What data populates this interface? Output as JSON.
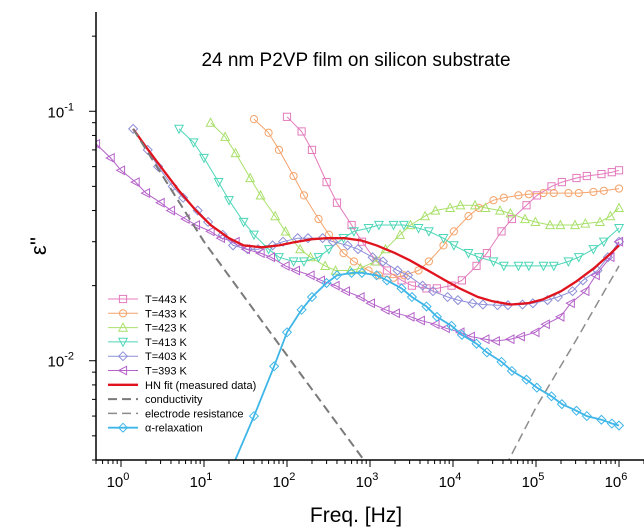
{
  "chart_data": {
    "type": "line",
    "title": "24 nm P2VP film on silicon substrate",
    "xlabel": "Freq. [Hz]",
    "ylabel": "ε''",
    "xscale": "log",
    "yscale": "log",
    "xlim": [
      0.5,
      2000000
    ],
    "ylim": [
      0.004,
      0.25
    ],
    "x_ticks": [
      {
        "value": 1,
        "label": "10^0"
      },
      {
        "value": 10,
        "label": "10^1"
      },
      {
        "value": 100,
        "label": "10^2"
      },
      {
        "value": 1000,
        "label": "10^3"
      },
      {
        "value": 10000,
        "label": "10^4"
      },
      {
        "value": 100000,
        "label": "10^5"
      },
      {
        "value": 1000000,
        "label": "10^6"
      }
    ],
    "y_ticks": [
      {
        "value": 0.01,
        "label": "10^-2"
      },
      {
        "value": 0.1,
        "label": "10^-1"
      }
    ],
    "legend_position": "bottom-left",
    "series": [
      {
        "name": "T=443 K",
        "color": "#e47bbd",
        "marker": "square",
        "dash": "solid",
        "x": [
          100,
          150,
          200,
          300,
          400,
          600,
          800,
          1200,
          1600,
          2400,
          3200,
          4800,
          6400,
          9600,
          12800,
          19200,
          25600,
          38400,
          51200,
          76800,
          102400,
          153600,
          204800,
          307200,
          409600,
          614400,
          819200,
          1000000
        ],
        "y": [
          0.095,
          0.083,
          0.07,
          0.052,
          0.043,
          0.035,
          0.03,
          0.025,
          0.023,
          0.021,
          0.02,
          0.0195,
          0.0195,
          0.02,
          0.021,
          0.024,
          0.027,
          0.033,
          0.037,
          0.042,
          0.046,
          0.05,
          0.052,
          0.054,
          0.055,
          0.056,
          0.057,
          0.058
        ]
      },
      {
        "name": "T=433 K",
        "color": "#f5a36b",
        "marker": "circle",
        "dash": "solid",
        "x": [
          40,
          60,
          80,
          120,
          160,
          240,
          320,
          480,
          640,
          960,
          1280,
          1920,
          2560,
          3840,
          5120,
          7680,
          10240,
          15360,
          20480,
          30720,
          40960,
          61440,
          81920,
          122880,
          163840,
          245760,
          327680,
          491520,
          655360,
          1000000
        ],
        "y": [
          0.093,
          0.082,
          0.07,
          0.055,
          0.046,
          0.037,
          0.032,
          0.027,
          0.025,
          0.023,
          0.022,
          0.0215,
          0.022,
          0.023,
          0.025,
          0.029,
          0.033,
          0.038,
          0.041,
          0.044,
          0.045,
          0.046,
          0.0465,
          0.047,
          0.047,
          0.047,
          0.047,
          0.0475,
          0.048,
          0.049
        ]
      },
      {
        "name": "T=423 K",
        "color": "#a9e06a",
        "marker": "triangle-up",
        "dash": "solid",
        "x": [
          12,
          18,
          24,
          36,
          48,
          72,
          96,
          144,
          192,
          288,
          384,
          576,
          768,
          1152,
          1536,
          2304,
          3072,
          4608,
          6144,
          9216,
          12288,
          18432,
          24576,
          36864,
          49152,
          73728,
          98304,
          147456,
          196608,
          294912,
          393216,
          589824,
          786432,
          1000000
        ],
        "y": [
          0.09,
          0.079,
          0.068,
          0.054,
          0.046,
          0.038,
          0.033,
          0.028,
          0.026,
          0.024,
          0.023,
          0.023,
          0.0235,
          0.025,
          0.028,
          0.032,
          0.035,
          0.038,
          0.04,
          0.041,
          0.042,
          0.042,
          0.041,
          0.04,
          0.039,
          0.037,
          0.036,
          0.035,
          0.035,
          0.035,
          0.0355,
          0.036,
          0.038,
          0.041
        ]
      },
      {
        "name": "T=413 K",
        "color": "#4dd6b8",
        "marker": "triangle-down",
        "dash": "solid",
        "x": [
          5,
          7.5,
          10,
          15,
          20,
          30,
          40,
          60,
          80,
          120,
          160,
          240,
          320,
          480,
          640,
          960,
          1280,
          1920,
          2560,
          3840,
          5120,
          7680,
          10240,
          15360,
          20480,
          30720,
          40960,
          61440,
          81920,
          122880,
          163840,
          245760,
          327680,
          491520,
          655360,
          1000000
        ],
        "y": [
          0.085,
          0.075,
          0.065,
          0.052,
          0.044,
          0.036,
          0.032,
          0.028,
          0.026,
          0.025,
          0.025,
          0.026,
          0.028,
          0.031,
          0.033,
          0.034,
          0.035,
          0.035,
          0.035,
          0.034,
          0.033,
          0.031,
          0.029,
          0.027,
          0.026,
          0.025,
          0.024,
          0.024,
          0.024,
          0.024,
          0.024,
          0.025,
          0.026,
          0.028,
          0.03,
          0.034
        ]
      },
      {
        "name": "T=403 K",
        "color": "#8e8fd8",
        "marker": "diamond",
        "dash": "solid",
        "x": [
          1.4,
          2.1,
          2.8,
          4.2,
          5.6,
          8.4,
          11.2,
          16.8,
          22.4,
          33.6,
          44.8,
          67.2,
          89.6,
          134.4,
          179.2,
          268.8,
          358.4,
          537.6,
          716.8,
          1075.2,
          1433.6,
          2150.4,
          2867.2,
          4300.8,
          5734.4,
          8601.6,
          11468.8,
          17203.2,
          22937.6,
          34406.4,
          45875.2,
          68812.8,
          91750.4,
          137625.6,
          183500.8,
          275251.2,
          367001.6,
          550502.4,
          734003.2,
          1000000
        ],
        "y": [
          0.085,
          0.07,
          0.06,
          0.05,
          0.045,
          0.04,
          0.036,
          0.032,
          0.029,
          0.028,
          0.028,
          0.029,
          0.03,
          0.031,
          0.031,
          0.031,
          0.03,
          0.029,
          0.028,
          0.026,
          0.025,
          0.023,
          0.022,
          0.02,
          0.019,
          0.018,
          0.0175,
          0.017,
          0.0168,
          0.0167,
          0.0167,
          0.0168,
          0.017,
          0.0175,
          0.018,
          0.019,
          0.021,
          0.023,
          0.026,
          0.03
        ]
      },
      {
        "name": "T=393 K",
        "color": "#b462c9",
        "marker": "triangle-left",
        "dash": "solid",
        "x": [
          0.5,
          0.75,
          1,
          1.5,
          2,
          3,
          4,
          6,
          8,
          12,
          16,
          24,
          32,
          48,
          64,
          96,
          128,
          192,
          256,
          384,
          512,
          768,
          1024,
          1536,
          2048,
          3072,
          4096,
          6144,
          8192,
          12288,
          16384,
          24576,
          32768,
          49152,
          65536,
          98304,
          131072,
          196608,
          262144,
          393216,
          524288,
          786432,
          1000000
        ],
        "y": [
          0.074,
          0.065,
          0.058,
          0.052,
          0.047,
          0.043,
          0.04,
          0.037,
          0.035,
          0.033,
          0.031,
          0.03,
          0.028,
          0.027,
          0.026,
          0.024,
          0.023,
          0.022,
          0.021,
          0.02,
          0.019,
          0.018,
          0.017,
          0.016,
          0.0155,
          0.015,
          0.0145,
          0.014,
          0.0135,
          0.013,
          0.0125,
          0.0122,
          0.012,
          0.0122,
          0.0125,
          0.013,
          0.014,
          0.015,
          0.017,
          0.019,
          0.022,
          0.026,
          0.03
        ]
      },
      {
        "name": "HN fit (measured data)",
        "color": "#e0141e",
        "marker": "none",
        "dash": "solid",
        "width": 2.3,
        "x": [
          1.4,
          2,
          3,
          5,
          8,
          12,
          20,
          30,
          50,
          80,
          120,
          200,
          300,
          500,
          800,
          1200,
          2000,
          3000,
          5000,
          8000,
          12000,
          20000,
          30000,
          50000,
          80000,
          120000,
          200000,
          300000,
          500000,
          800000,
          1000000
        ],
        "y": [
          0.085,
          0.072,
          0.06,
          0.048,
          0.04,
          0.035,
          0.031,
          0.029,
          0.0285,
          0.029,
          0.0298,
          0.0307,
          0.031,
          0.031,
          0.0303,
          0.029,
          0.027,
          0.0253,
          0.023,
          0.021,
          0.0195,
          0.018,
          0.0173,
          0.0168,
          0.017,
          0.0176,
          0.019,
          0.0207,
          0.0235,
          0.027,
          0.029
        ]
      },
      {
        "name": "conductivity",
        "color": "#7a7a7a",
        "marker": "none",
        "dash": "dash",
        "width": 2,
        "x": [
          1.4,
          10,
          100,
          1000,
          3000
        ],
        "y": [
          0.085,
          0.03,
          0.0105,
          0.0037,
          0.0021
        ]
      },
      {
        "name": "electrode resistance",
        "color": "#8c8c8c",
        "marker": "none",
        "dash": "dash",
        "width": 1.5,
        "x": [
          30000,
          100000,
          300000,
          1000000
        ],
        "y": [
          0.003,
          0.0065,
          0.012,
          0.024
        ]
      },
      {
        "name": "α-relaxation",
        "color": "#3fb6e8",
        "marker": "diamond",
        "dash": "solid",
        "width": 1.8,
        "x": [
          20,
          40,
          70,
          100,
          150,
          200,
          300,
          400,
          600,
          800,
          1200,
          1600,
          2400,
          3200,
          4800,
          6400,
          9600,
          12800,
          19200,
          25600,
          38400,
          51200,
          76800,
          102400,
          153600,
          204800,
          307200,
          409600,
          614400,
          819200,
          1000000
        ],
        "y": [
          0.0035,
          0.006,
          0.0095,
          0.013,
          0.016,
          0.018,
          0.0205,
          0.022,
          0.0225,
          0.0225,
          0.022,
          0.021,
          0.0195,
          0.018,
          0.0165,
          0.015,
          0.0138,
          0.0127,
          0.0117,
          0.0108,
          0.0099,
          0.0091,
          0.0084,
          0.0078,
          0.0072,
          0.0067,
          0.0063,
          0.006,
          0.0058,
          0.0056,
          0.0055
        ]
      }
    ]
  }
}
